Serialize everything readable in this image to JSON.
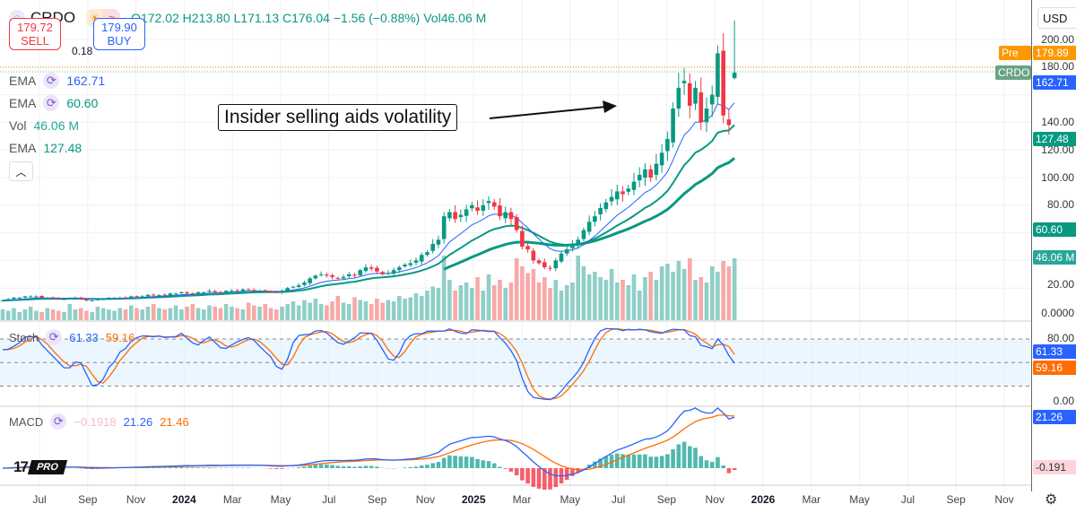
{
  "header": {
    "symbol": "CRDO",
    "open": "O172.02",
    "high": "H213.80",
    "low": "L171.13",
    "close": "C176.04",
    "change": "−1.56 (−0.88%)",
    "volume": "Vol46.06 M"
  },
  "trade": {
    "sell_price": "179.72",
    "sell_label": "SELL",
    "spread": "0.18",
    "buy_price": "179.90",
    "buy_label": "BUY"
  },
  "indicators": [
    {
      "name": "EMA",
      "value": "162.71",
      "color": "#2962ff"
    },
    {
      "name": "EMA",
      "value": "60.60",
      "color": "#089981"
    },
    {
      "name": "Vol",
      "value": "46.06 M",
      "color": "#26a69a"
    },
    {
      "name": "EMA",
      "value": "127.48",
      "color": "#089981"
    }
  ],
  "stoch": {
    "name": "Stoch",
    "k": "61.33",
    "d": "59.16"
  },
  "macd": {
    "name": "MACD",
    "hist": "−0.1918",
    "macd": "21.26",
    "signal": "21.46"
  },
  "annotation": "Insider selling aids volatility",
  "axis": {
    "currency": "USD",
    "price_ticks": [
      "200.00",
      "180.00",
      "140.00",
      "120.00",
      "100.00",
      "80.00",
      "20.00",
      "0.0000"
    ],
    "stoch_ticks": [
      "80.00",
      "0.00"
    ],
    "tags": {
      "pre_label": "Pre",
      "pre": "179.89",
      "symbol": "CRDO",
      "ema_fast": "162.71",
      "ema_mid": "127.48",
      "ema_slow": "60.60",
      "vol": "46.06 M",
      "stoch_k": "61.33",
      "stoch_d": "59.16",
      "macd": "21.26",
      "hist": "-0.191"
    }
  },
  "time_axis": [
    "Jul",
    "Sep",
    "Nov",
    "2024",
    "Mar",
    "May",
    "Jul",
    "Sep",
    "Nov",
    "2025",
    "Mar",
    "May",
    "Jul",
    "Sep",
    "Nov",
    "2026",
    "Mar",
    "May",
    "Jul",
    "Sep",
    "Nov"
  ],
  "logo_text": "PRO",
  "chart_data": {
    "type": "candlestick",
    "interval": "weekly",
    "ylim": [
      0,
      220
    ],
    "ema_periods": {
      "fast": 10,
      "mid": 20,
      "slow": 50
    },
    "closes": [
      11,
      12,
      13,
      13,
      14,
      14,
      14,
      13,
      13,
      13,
      12,
      12,
      13,
      13,
      12,
      11,
      11,
      12,
      12,
      13,
      13,
      13,
      13,
      14,
      14,
      14,
      15,
      15,
      15,
      15,
      16,
      16,
      17,
      16,
      16,
      17,
      17,
      18,
      17,
      17,
      18,
      18,
      18,
      19,
      19,
      18,
      18,
      18,
      17,
      17,
      18,
      20,
      21,
      22,
      24,
      27,
      29,
      30,
      29,
      28,
      27,
      28,
      30,
      29,
      33,
      35,
      34,
      32,
      30,
      31,
      33,
      35,
      37,
      38,
      40,
      44,
      46,
      52,
      55,
      72,
      75,
      70,
      73,
      77,
      80,
      76,
      80,
      83,
      79,
      72,
      75,
      70,
      62,
      50,
      48,
      40,
      38,
      35,
      34,
      40,
      45,
      48,
      52,
      55,
      62,
      68,
      72,
      78,
      82,
      86,
      90,
      88,
      92,
      97,
      102,
      106,
      100,
      110,
      118,
      128,
      150,
      165,
      170,
      152,
      165,
      140,
      150,
      160,
      190,
      145,
      138,
      176
    ],
    "volumes_m": [
      8,
      7,
      9,
      6,
      8,
      10,
      7,
      6,
      9,
      8,
      7,
      6,
      12,
      8,
      9,
      7,
      6,
      10,
      9,
      8,
      7,
      9,
      8,
      11,
      9,
      8,
      10,
      12,
      9,
      8,
      9,
      11,
      8,
      10,
      12,
      9,
      8,
      11,
      10,
      9,
      12,
      10,
      9,
      8,
      13,
      11,
      10,
      12,
      9,
      8,
      10,
      12,
      14,
      11,
      15,
      13,
      16,
      12,
      11,
      14,
      18,
      13,
      12,
      17,
      15,
      14,
      12,
      16,
      13,
      15,
      14,
      18,
      16,
      17,
      20,
      18,
      22,
      25,
      24,
      48,
      30,
      22,
      26,
      28,
      24,
      32,
      22,
      34,
      26,
      30,
      24,
      28,
      46,
      40,
      35,
      38,
      28,
      32,
      24,
      30,
      22,
      26,
      28,
      48,
      40,
      34,
      36,
      32,
      30,
      38,
      28,
      30,
      26,
      34,
      22,
      32,
      36,
      30,
      40,
      42,
      36,
      44,
      38,
      46,
      30,
      32,
      28,
      40,
      36,
      44,
      40,
      46.06
    ]
  }
}
